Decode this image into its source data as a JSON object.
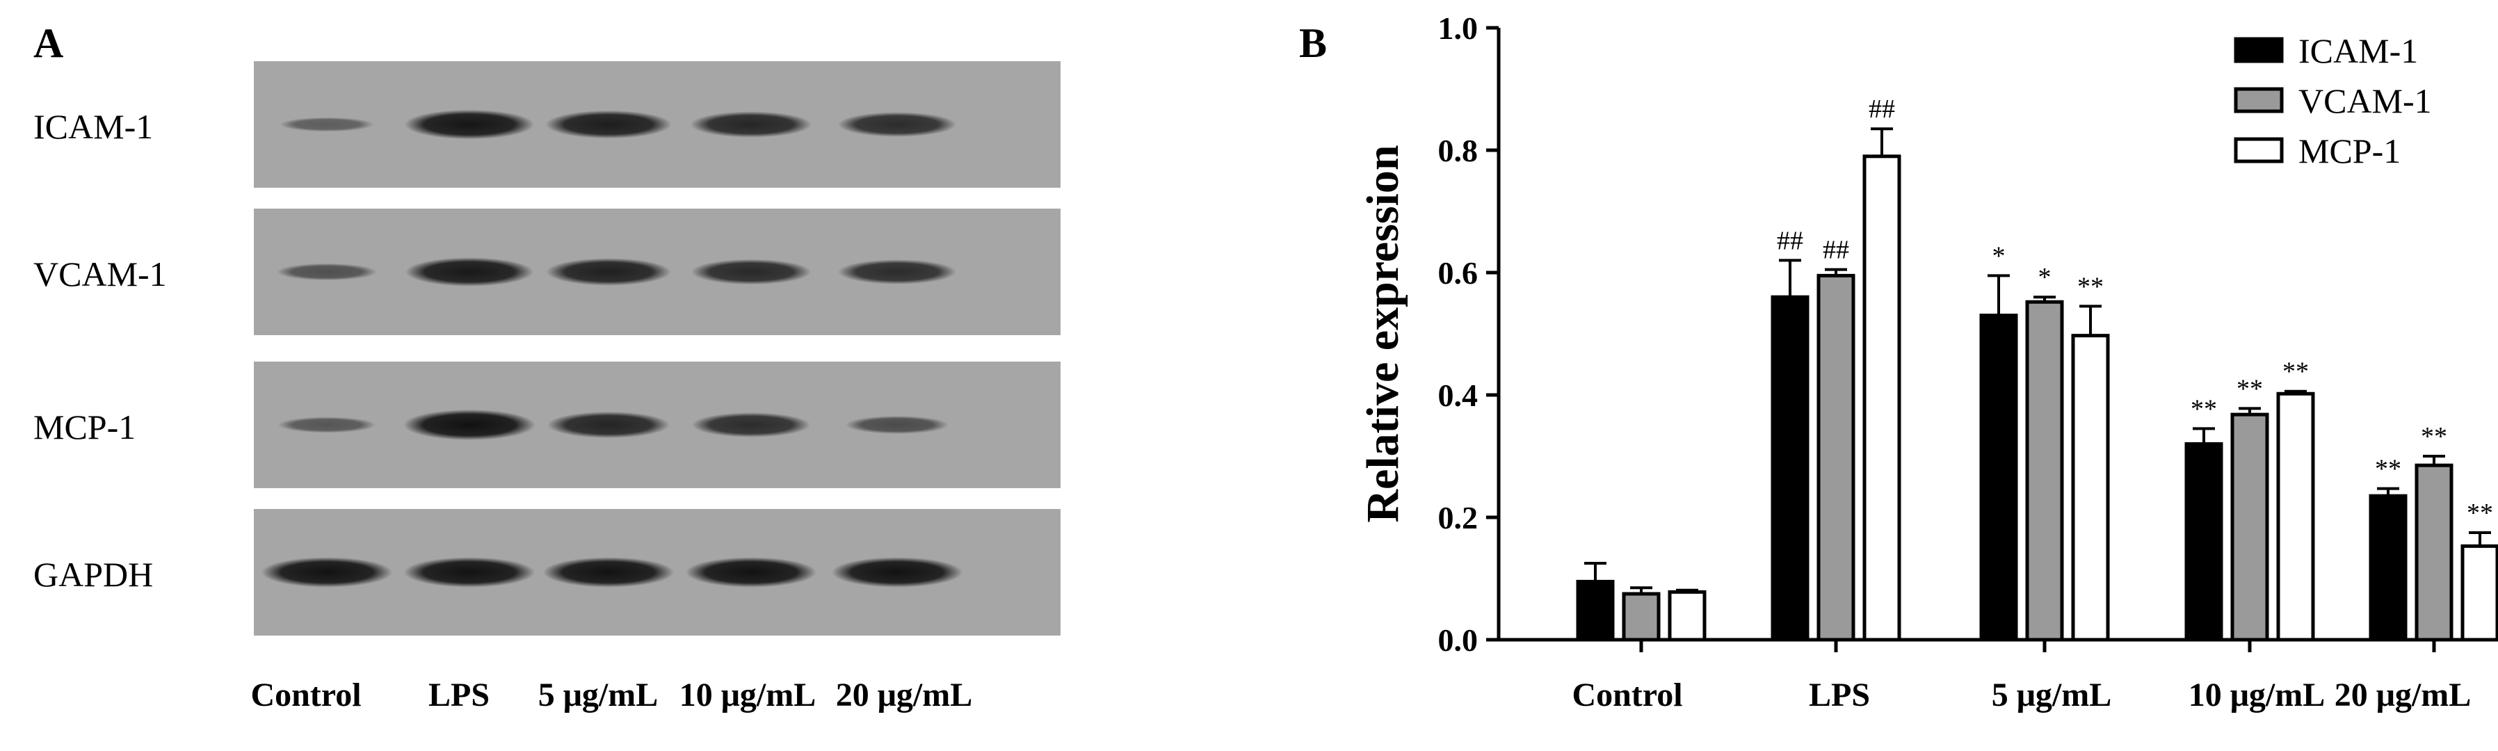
{
  "panel_a": {
    "letter": "A",
    "rows": [
      {
        "label": "ICAM-1",
        "intensities": [
          0.22,
          0.95,
          0.88,
          0.78,
          0.72
        ]
      },
      {
        "label": "VCAM-1",
        "intensities": [
          0.35,
          0.92,
          0.85,
          0.75,
          0.72
        ]
      },
      {
        "label": "MCP-1",
        "intensities": [
          0.3,
          1.0,
          0.8,
          0.72,
          0.4
        ]
      },
      {
        "label": "GAPDH",
        "intensities": [
          0.98,
          0.98,
          0.98,
          0.98,
          0.98
        ]
      }
    ],
    "lanes": [
      "Control",
      "LPS",
      "5 μg/mL",
      "10 μg/mL",
      "20 μg/mL"
    ]
  },
  "panel_b": {
    "letter": "B"
  },
  "chart_data": {
    "type": "bar",
    "title": "",
    "xlabel": "",
    "ylabel": "Relative expression",
    "ylim": [
      0,
      1.0
    ],
    "yticks": [
      "0.0",
      "0.2",
      "0.4",
      "0.6",
      "0.8",
      "1.0"
    ],
    "categories": [
      "Control",
      "LPS",
      "5 μg/mL",
      "10 μg/mL",
      "20 μg/mL"
    ],
    "legend_position": "top-right",
    "grid": false,
    "series": [
      {
        "name": "ICAM-1",
        "fill": "#000000",
        "values": [
          0.095,
          0.56,
          0.53,
          0.32,
          0.235
        ],
        "errors": [
          0.03,
          0.06,
          0.065,
          0.025,
          0.012
        ],
        "labels": [
          "",
          "##",
          "*",
          "**",
          "**"
        ]
      },
      {
        "name": "VCAM-1",
        "fill": "#9a9a9a",
        "values": [
          0.075,
          0.595,
          0.552,
          0.368,
          0.285
        ],
        "errors": [
          0.01,
          0.01,
          0.008,
          0.01,
          0.015
        ],
        "labels": [
          "",
          "##",
          "*",
          "**",
          "**"
        ]
      },
      {
        "name": "MCP-1",
        "fill": "#ffffff",
        "values": [
          0.078,
          0.79,
          0.497,
          0.402,
          0.153
        ],
        "errors": [
          0.003,
          0.045,
          0.048,
          0.004,
          0.022
        ],
        "labels": [
          "",
          "##",
          "**",
          "**",
          "**"
        ]
      }
    ]
  }
}
